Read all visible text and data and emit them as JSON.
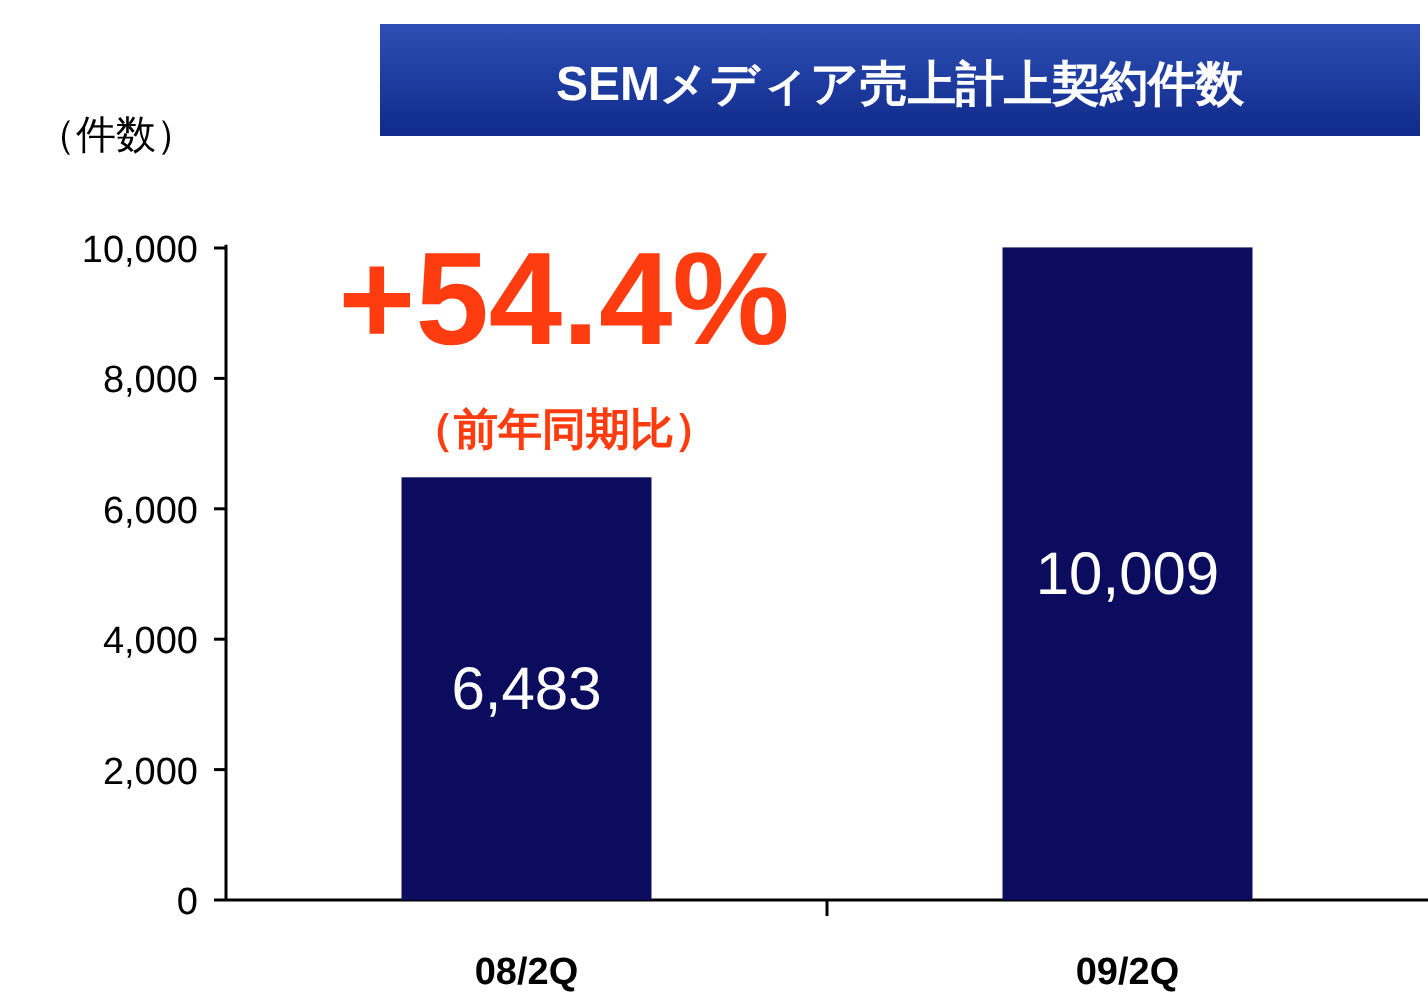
{
  "chart_data": {
    "type": "bar",
    "title": "SEMメディア売上計上契約件数",
    "ylabel": "（件数）",
    "categories": [
      "08/2Q",
      "09/2Q"
    ],
    "series": [
      {
        "color": "#0c0c5e",
        "values": [
          6483,
          10009
        ],
        "value_labels": [
          "6,483",
          "10,009"
        ]
      }
    ],
    "ylim": [
      0,
      10050
    ],
    "yticks": [
      0,
      {
        "value": 2000,
        "label": "2,000"
      },
      {
        "value": 4000,
        "label": "4,000"
      },
      {
        "value": 6000,
        "label": "6,000"
      },
      {
        "value": 8000,
        "label": "8,000"
      },
      {
        "value": 10000,
        "label": "10,000"
      }
    ],
    "annotations": [
      "+54.4%",
      "（前年同期比）"
    ]
  }
}
